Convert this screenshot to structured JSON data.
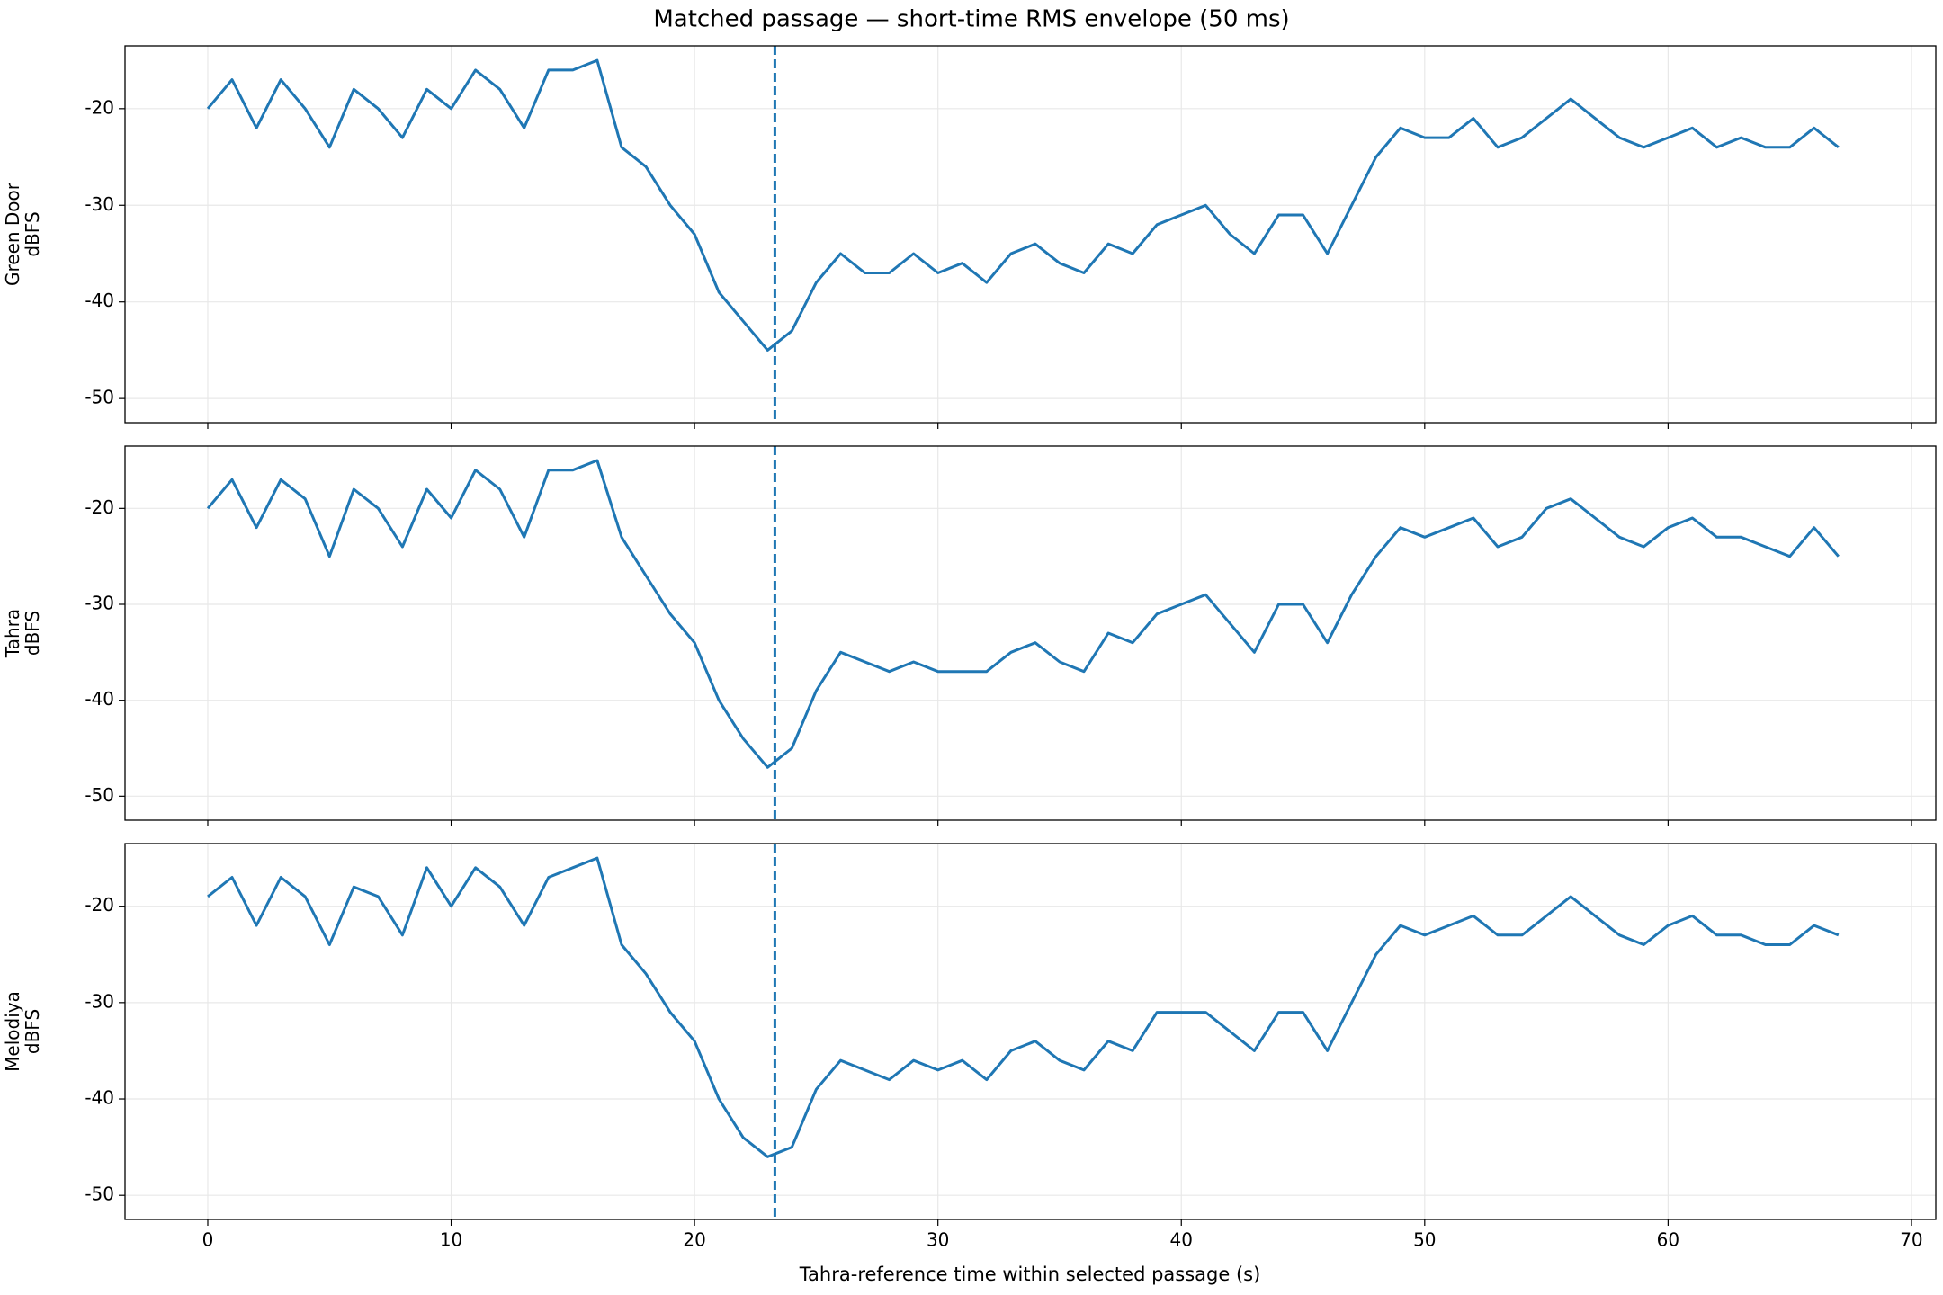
{
  "title": "Matched passage — short-time RMS envelope (50 ms)",
  "x_label": "Tahra-reference time within selected passage (s)",
  "chart_data": [
    {
      "type": "line",
      "y_label": [
        "Green Door",
        "dBFS"
      ],
      "x": [
        0,
        1,
        2,
        3,
        4,
        5,
        6,
        7,
        8,
        9,
        10,
        11,
        12,
        13,
        14,
        15,
        16,
        17,
        18,
        19,
        20,
        21,
        22,
        23,
        24,
        25,
        26,
        27,
        28,
        29,
        30,
        31,
        32,
        33,
        34,
        35,
        36,
        37,
        38,
        39,
        40,
        41,
        42,
        43,
        44,
        45,
        46,
        47,
        48,
        49,
        50,
        51,
        52,
        53,
        54,
        55,
        56,
        57,
        58,
        59,
        60,
        61,
        62,
        63,
        64,
        65,
        66,
        67
      ],
      "series": [
        {
          "name": "Green Door",
          "color": "#1f77b4",
          "values": [
            -20,
            -17,
            -22,
            -17,
            -20,
            -24,
            -18,
            -20,
            -23,
            -18,
            -20,
            -16,
            -18,
            -22,
            -16,
            -16,
            -15,
            -24,
            -26,
            -30,
            -33,
            -39,
            -42,
            -45,
            -43,
            -38,
            -35,
            -37,
            -37,
            -35,
            -37,
            -36,
            -38,
            -35,
            -34,
            -36,
            -37,
            -34,
            -35,
            -32,
            -31,
            -30,
            -33,
            -35,
            -31,
            -31,
            -35,
            -30,
            -25,
            -22,
            -23,
            -23,
            -21,
            -24,
            -23,
            -21,
            -19,
            -21,
            -23,
            -24,
            -23,
            -22,
            -24,
            -23,
            -24,
            -24,
            -22,
            -24
          ]
        }
      ],
      "vline": 23.3,
      "xlim": [
        -3.4,
        71
      ],
      "xticks": [
        0,
        10,
        20,
        30,
        40,
        50,
        60,
        70
      ],
      "ylim": [
        -52.5,
        -13.5
      ],
      "yticks": [
        -20,
        -30,
        -40,
        -50
      ],
      "grid": true
    },
    {
      "type": "line",
      "y_label": [
        "Tahra",
        "dBFS"
      ],
      "x": [
        0,
        1,
        2,
        3,
        4,
        5,
        6,
        7,
        8,
        9,
        10,
        11,
        12,
        13,
        14,
        15,
        16,
        17,
        18,
        19,
        20,
        21,
        22,
        23,
        24,
        25,
        26,
        27,
        28,
        29,
        30,
        31,
        32,
        33,
        34,
        35,
        36,
        37,
        38,
        39,
        40,
        41,
        42,
        43,
        44,
        45,
        46,
        47,
        48,
        49,
        50,
        51,
        52,
        53,
        54,
        55,
        56,
        57,
        58,
        59,
        60,
        61,
        62,
        63,
        64,
        65,
        66,
        67
      ],
      "series": [
        {
          "name": "Tahra",
          "color": "#1f77b4",
          "values": [
            -20,
            -17,
            -22,
            -17,
            -19,
            -25,
            -18,
            -20,
            -24,
            -18,
            -21,
            -16,
            -18,
            -23,
            -16,
            -16,
            -15,
            -23,
            -27,
            -31,
            -34,
            -40,
            -44,
            -47,
            -45,
            -39,
            -35,
            -36,
            -37,
            -36,
            -37,
            -37,
            -37,
            -35,
            -34,
            -36,
            -37,
            -33,
            -34,
            -31,
            -30,
            -29,
            -32,
            -35,
            -30,
            -30,
            -34,
            -29,
            -25,
            -22,
            -23,
            -22,
            -21,
            -24,
            -23,
            -20,
            -19,
            -21,
            -23,
            -24,
            -22,
            -21,
            -23,
            -23,
            -24,
            -25,
            -22,
            -25
          ]
        }
      ],
      "vline": 23.3,
      "xlim": [
        -3.4,
        71
      ],
      "xticks": [
        0,
        10,
        20,
        30,
        40,
        50,
        60,
        70
      ],
      "ylim": [
        -52.5,
        -13.5
      ],
      "yticks": [
        -20,
        -30,
        -40,
        -50
      ],
      "grid": true
    },
    {
      "type": "line",
      "y_label": [
        "Melodiya",
        "dBFS"
      ],
      "x": [
        0,
        1,
        2,
        3,
        4,
        5,
        6,
        7,
        8,
        9,
        10,
        11,
        12,
        13,
        14,
        15,
        16,
        17,
        18,
        19,
        20,
        21,
        22,
        23,
        24,
        25,
        26,
        27,
        28,
        29,
        30,
        31,
        32,
        33,
        34,
        35,
        36,
        37,
        38,
        39,
        40,
        41,
        42,
        43,
        44,
        45,
        46,
        47,
        48,
        49,
        50,
        51,
        52,
        53,
        54,
        55,
        56,
        57,
        58,
        59,
        60,
        61,
        62,
        63,
        64,
        65,
        66,
        67
      ],
      "series": [
        {
          "name": "Melodiya",
          "color": "#1f77b4",
          "values": [
            -19,
            -17,
            -22,
            -17,
            -19,
            -24,
            -18,
            -19,
            -23,
            -16,
            -20,
            -16,
            -18,
            -22,
            -17,
            -16,
            -15,
            -24,
            -27,
            -31,
            -34,
            -40,
            -44,
            -46,
            -45,
            -39,
            -36,
            -37,
            -38,
            -36,
            -37,
            -36,
            -38,
            -35,
            -34,
            -36,
            -37,
            -34,
            -35,
            -31,
            -31,
            -31,
            -33,
            -35,
            -31,
            -31,
            -35,
            -30,
            -25,
            -22,
            -23,
            -22,
            -21,
            -23,
            -23,
            -21,
            -19,
            -21,
            -23,
            -24,
            -22,
            -21,
            -23,
            -23,
            -24,
            -24,
            -22,
            -23
          ]
        }
      ],
      "vline": 23.3,
      "xlim": [
        -3.4,
        71
      ],
      "xticks": [
        0,
        10,
        20,
        30,
        40,
        50,
        60,
        70
      ],
      "ylim": [
        -52.5,
        -13.5
      ],
      "yticks": [
        -20,
        -30,
        -40,
        -50
      ],
      "grid": true
    }
  ]
}
